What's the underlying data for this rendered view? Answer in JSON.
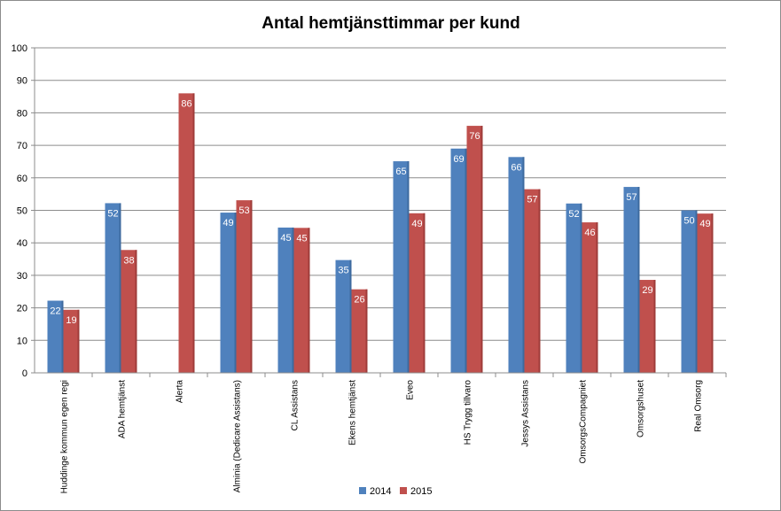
{
  "chart_data": {
    "type": "bar",
    "title": "Antal hemtjänsttimmar per kund",
    "xlabel": "",
    "ylabel": "",
    "ylim": [
      0,
      100
    ],
    "yticks": [
      0,
      10,
      20,
      30,
      40,
      50,
      60,
      70,
      80,
      90,
      100
    ],
    "grid": true,
    "legend_position": "bottom",
    "categories": [
      "Huddinge kommun egen regi",
      "ADA hemtjänst",
      "Alerta",
      "Alminia (Dedicare Assistans)",
      "CL Assistans",
      "Ekens hemtjänst",
      "Eveo",
      "HS Trygg tillvaro",
      "Jessys Assistans",
      "OmsorgsCompagniet",
      "Omsorgshuset",
      "Real Omsorg"
    ],
    "series": [
      {
        "name": "2014",
        "color": "#4f81bd",
        "values": [
          22.2,
          52.2,
          null,
          49.3,
          44.7,
          34.7,
          65.1,
          69.0,
          66.4,
          52.1,
          57.2,
          50.0
        ],
        "labels": [
          "22",
          "52",
          "",
          "49",
          "45",
          "35",
          "65",
          "69",
          "66",
          "52",
          "57",
          "50"
        ]
      },
      {
        "name": "2015",
        "color": "#c0504d",
        "values": [
          19.4,
          37.8,
          86.0,
          53.1,
          44.6,
          25.7,
          49.1,
          76.0,
          56.5,
          46.3,
          28.6,
          49.0
        ],
        "labels": [
          "19",
          "38",
          "86",
          "53",
          "45",
          "26",
          "49",
          "76",
          "57",
          "46",
          "29",
          "49"
        ]
      }
    ]
  }
}
